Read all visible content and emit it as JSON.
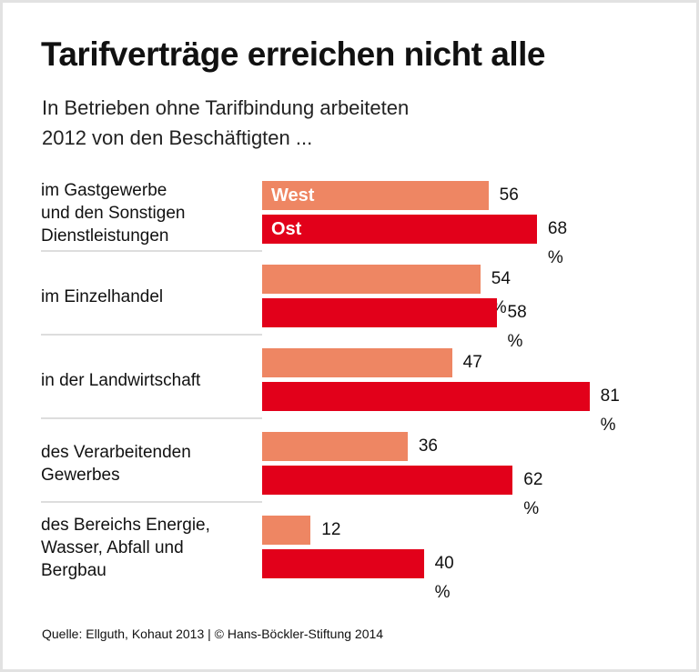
{
  "title": "Tarifverträge erreichen nicht alle",
  "subtitle_line1": "In Betrieben ohne Tarifbindung arbeiteten",
  "subtitle_line2": "2012 von den Beschäftigten ...",
  "source": "Quelle: Ellguth, Kohaut 2013 | © Hans-Böckler-Stiftung 2014",
  "chart_data": {
    "type": "bar",
    "orientation": "horizontal",
    "categories": [
      [
        "im Gastgewerbe",
        "und den Sonstigen",
        "Dienstleistungen"
      ],
      [
        "im Einzelhandel"
      ],
      [
        "in der Landwirtschaft"
      ],
      [
        "des Verarbeitenden",
        "Gewerbes"
      ],
      [
        "des Bereichs Energie,",
        "Wasser, Abfall und",
        "Bergbau"
      ]
    ],
    "series": [
      {
        "name": "West",
        "color": "#ee8663",
        "values": [
          56,
          54,
          47,
          36,
          12
        ]
      },
      {
        "name": "Ost",
        "color": "#e2001a",
        "values": [
          68,
          58,
          81,
          62,
          40
        ]
      }
    ],
    "unit": "%",
    "xlim": [
      0,
      100
    ],
    "grid": false,
    "legend": "inside first bars"
  }
}
